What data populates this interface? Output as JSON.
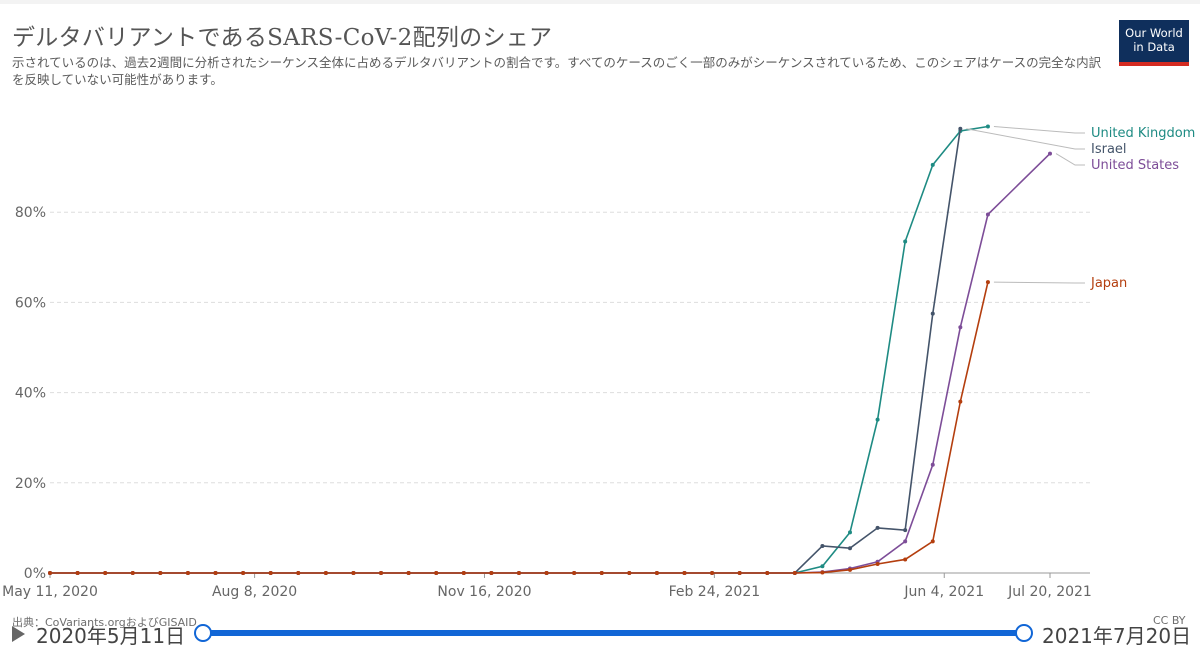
{
  "header": {
    "title": "デルタバリアントであるSARS-CoV-2配列のシェア",
    "subtitle": "示されているのは、過去2週間に分析されたシーケンス全体に占めるデルタバリアントの割合です。すべてのケースのごく一部のみがシーケンスされているため、このシェアはケースの完全な内訳を反映していない可能性があります。",
    "logo_text": "Our World\nin Data"
  },
  "chart_data": {
    "type": "line",
    "x_ticks": [
      "May 11, 2020",
      "Aug 8, 2020",
      "Nov 16, 2020",
      "Feb 24, 2021",
      "Jun 4, 2021",
      "Jul 20, 2021"
    ],
    "x_tick_dates": [
      "2020-05-11",
      "2020-08-08",
      "2020-11-16",
      "2021-02-24",
      "2021-06-04",
      "2021-07-20"
    ],
    "y_ticks": [
      "0%",
      "20%",
      "40%",
      "60%",
      "80%"
    ],
    "ylim": [
      0,
      100
    ],
    "grid": true,
    "legend": "right",
    "series": [
      {
        "name": "United Kingdom",
        "color": "#1e8b83",
        "points": [
          [
            "2020-05-11",
            0
          ],
          [
            "2020-05-23",
            0
          ],
          [
            "2020-06-04",
            0
          ],
          [
            "2020-06-16",
            0
          ],
          [
            "2020-06-28",
            0
          ],
          [
            "2020-07-10",
            0
          ],
          [
            "2020-07-22",
            0
          ],
          [
            "2020-08-03",
            0
          ],
          [
            "2020-08-15",
            0
          ],
          [
            "2020-08-27",
            0
          ],
          [
            "2020-09-08",
            0
          ],
          [
            "2020-09-20",
            0
          ],
          [
            "2020-10-02",
            0
          ],
          [
            "2020-10-14",
            0
          ],
          [
            "2020-10-26",
            0
          ],
          [
            "2020-11-07",
            0
          ],
          [
            "2020-11-19",
            0
          ],
          [
            "2020-12-01",
            0
          ],
          [
            "2020-12-13",
            0
          ],
          [
            "2020-12-25",
            0
          ],
          [
            "2021-01-06",
            0
          ],
          [
            "2021-01-18",
            0
          ],
          [
            "2021-01-30",
            0
          ],
          [
            "2021-02-11",
            0
          ],
          [
            "2021-02-23",
            0
          ],
          [
            "2021-03-07",
            0
          ],
          [
            "2021-03-19",
            0
          ],
          [
            "2021-03-31",
            0
          ],
          [
            "2021-04-12",
            1.5
          ],
          [
            "2021-04-24",
            9
          ],
          [
            "2021-05-06",
            34
          ],
          [
            "2021-05-18",
            73.5
          ],
          [
            "2021-05-30",
            90.5
          ],
          [
            "2021-06-11",
            98
          ],
          [
            "2021-06-23",
            99
          ]
        ]
      },
      {
        "name": "Israel",
        "color": "#44546a",
        "points": [
          [
            "2020-05-11",
            0
          ],
          [
            "2020-05-23",
            0
          ],
          [
            "2020-06-04",
            0
          ],
          [
            "2020-06-16",
            0
          ],
          [
            "2020-06-28",
            0
          ],
          [
            "2020-07-10",
            0
          ],
          [
            "2020-07-22",
            0
          ],
          [
            "2020-08-03",
            0
          ],
          [
            "2020-08-15",
            0
          ],
          [
            "2020-08-27",
            0
          ],
          [
            "2020-09-08",
            0
          ],
          [
            "2020-09-20",
            0
          ],
          [
            "2020-10-02",
            0
          ],
          [
            "2020-10-14",
            0
          ],
          [
            "2020-10-26",
            0
          ],
          [
            "2020-11-07",
            0
          ],
          [
            "2020-11-19",
            0
          ],
          [
            "2020-12-01",
            0
          ],
          [
            "2020-12-13",
            0
          ],
          [
            "2020-12-25",
            0
          ],
          [
            "2021-01-06",
            0
          ],
          [
            "2021-01-18",
            0
          ],
          [
            "2021-01-30",
            0
          ],
          [
            "2021-02-11",
            0
          ],
          [
            "2021-02-23",
            0
          ],
          [
            "2021-03-07",
            0
          ],
          [
            "2021-03-19",
            0
          ],
          [
            "2021-03-31",
            0
          ],
          [
            "2021-04-12",
            6
          ],
          [
            "2021-04-24",
            5.5
          ],
          [
            "2021-05-06",
            10
          ],
          [
            "2021-05-18",
            9.5
          ],
          [
            "2021-05-30",
            57.5
          ],
          [
            "2021-06-11",
            98.5
          ]
        ]
      },
      {
        "name": "United States",
        "color": "#7d4d98",
        "points": [
          [
            "2020-05-11",
            0
          ],
          [
            "2020-05-23",
            0
          ],
          [
            "2020-06-04",
            0
          ],
          [
            "2020-06-16",
            0
          ],
          [
            "2020-06-28",
            0
          ],
          [
            "2020-07-10",
            0
          ],
          [
            "2020-07-22",
            0
          ],
          [
            "2020-08-03",
            0
          ],
          [
            "2020-08-15",
            0
          ],
          [
            "2020-08-27",
            0
          ],
          [
            "2020-09-08",
            0
          ],
          [
            "2020-09-20",
            0
          ],
          [
            "2020-10-02",
            0
          ],
          [
            "2020-10-14",
            0
          ],
          [
            "2020-10-26",
            0
          ],
          [
            "2020-11-07",
            0
          ],
          [
            "2020-11-19",
            0
          ],
          [
            "2020-12-01",
            0
          ],
          [
            "2020-12-13",
            0
          ],
          [
            "2020-12-25",
            0
          ],
          [
            "2021-01-06",
            0
          ],
          [
            "2021-01-18",
            0
          ],
          [
            "2021-01-30",
            0
          ],
          [
            "2021-02-11",
            0
          ],
          [
            "2021-02-23",
            0
          ],
          [
            "2021-03-07",
            0
          ],
          [
            "2021-03-19",
            0
          ],
          [
            "2021-03-31",
            0
          ],
          [
            "2021-04-12",
            0.2
          ],
          [
            "2021-04-24",
            1
          ],
          [
            "2021-05-06",
            2.5
          ],
          [
            "2021-05-18",
            7
          ],
          [
            "2021-05-30",
            24
          ],
          [
            "2021-06-11",
            54.5
          ],
          [
            "2021-06-23",
            79.5
          ],
          [
            "2021-07-20",
            93
          ]
        ]
      },
      {
        "name": "Japan",
        "color": "#b43e0e",
        "points": [
          [
            "2020-05-11",
            0
          ],
          [
            "2020-05-23",
            0
          ],
          [
            "2020-06-04",
            0
          ],
          [
            "2020-06-16",
            0
          ],
          [
            "2020-06-28",
            0
          ],
          [
            "2020-07-10",
            0
          ],
          [
            "2020-07-22",
            0
          ],
          [
            "2020-08-03",
            0
          ],
          [
            "2020-08-15",
            0
          ],
          [
            "2020-08-27",
            0
          ],
          [
            "2020-09-08",
            0
          ],
          [
            "2020-09-20",
            0
          ],
          [
            "2020-10-02",
            0
          ],
          [
            "2020-10-14",
            0
          ],
          [
            "2020-10-26",
            0
          ],
          [
            "2020-11-07",
            0
          ],
          [
            "2020-11-19",
            0
          ],
          [
            "2020-12-01",
            0
          ],
          [
            "2020-12-13",
            0
          ],
          [
            "2020-12-25",
            0
          ],
          [
            "2021-01-06",
            0
          ],
          [
            "2021-01-18",
            0
          ],
          [
            "2021-01-30",
            0
          ],
          [
            "2021-02-11",
            0
          ],
          [
            "2021-02-23",
            0
          ],
          [
            "2021-03-07",
            0
          ],
          [
            "2021-03-19",
            0
          ],
          [
            "2021-03-31",
            0
          ],
          [
            "2021-04-12",
            0.1
          ],
          [
            "2021-04-24",
            0.7
          ],
          [
            "2021-05-06",
            2
          ],
          [
            "2021-05-18",
            3
          ],
          [
            "2021-05-30",
            7
          ],
          [
            "2021-06-11",
            38
          ],
          [
            "2021-06-23",
            64.5
          ]
        ]
      }
    ]
  },
  "footer": {
    "source": "出典：CoVariants.orgおよびGISAID",
    "license": "CC BY"
  },
  "timeline": {
    "start_label": "2020年5月11日",
    "end_label": "2021年7月20日"
  }
}
